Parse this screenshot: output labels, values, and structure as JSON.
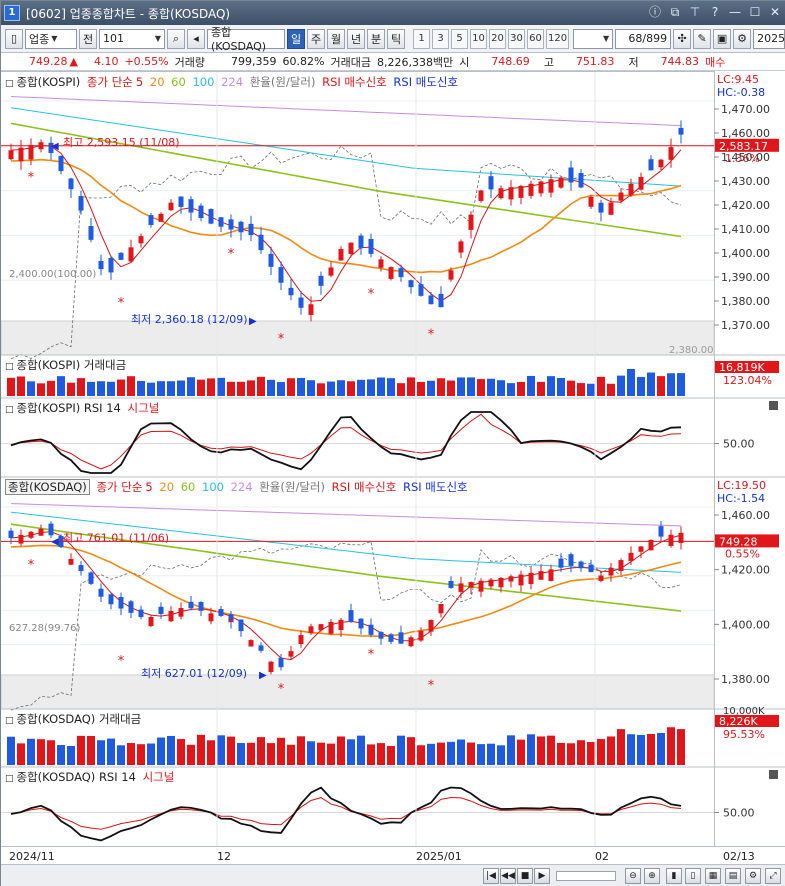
{
  "window": {
    "number": "1",
    "title": "[0602] 업종종합차트 - 종합(KOSDAQ)"
  },
  "toolbar": {
    "market": "업종",
    "prev_btn": "전",
    "code": "101",
    "name": "종합(KOSDAQ)",
    "periods": [
      "일",
      "주",
      "월",
      "년",
      "분",
      "틱"
    ],
    "active_period": "일",
    "minutes": [
      "1",
      "3",
      "5",
      "10",
      "20",
      "30",
      "60",
      "120"
    ],
    "count": "68/899",
    "date": "2025"
  },
  "quote": {
    "price": "749.28",
    "change": "4.10",
    "change_pct": "+0.55%",
    "volume_label": "거래량",
    "volume": "799,359",
    "volume_ratio": "60.82%",
    "amount_label": "거래대금",
    "amount": "8,226,338백만",
    "open_label": "시",
    "open": "748.69",
    "high_label": "고",
    "high": "751.83",
    "low_label": "저",
    "low": "744.83",
    "extra": "매수"
  },
  "kospi_panel": {
    "name": "종합(KOSPI)",
    "ma_label": "종가 단순",
    "ma": [
      "5",
      "20",
      "60",
      "100",
      "224"
    ],
    "fx_label": "환율(원/달러)",
    "buy_label": "RSI 매수신호",
    "sell_label": "RSI 매도신호",
    "lc": "LC:9.45",
    "hc": "HC:-0.38",
    "high_annot": "최고 2,593.15 (11/08)",
    "low_annot": "최저 2,360.18 (12/09)",
    "left_label": "2,400.00(100.00)",
    "last_price": "2,583.17",
    "last_pct": "1.36%",
    "right_ticks": [
      "1,470.00",
      "1,460.00",
      "1,450.00",
      "1,430.00",
      "1,420.00",
      "1,410.00",
      "1,400.00",
      "1,390.00",
      "1,380.00",
      "1,370.00"
    ],
    "bottom_cut": "2,380.00"
  },
  "kospi_volume": {
    "name": "종합(KOSPI) 거래대금",
    "last": "16,819K",
    "pct": "123.04%"
  },
  "kospi_rsi": {
    "name": "종합(KOSPI) RSI 14",
    "signal": "시그널",
    "tick": "50.00"
  },
  "kosdaq_panel": {
    "name": "종합(KOSDAQ)",
    "ma_label": "종가 단순",
    "ma": [
      "5",
      "20",
      "60",
      "100",
      "224"
    ],
    "fx_label": "환율(원/달러)",
    "buy_label": "RSI 매수신호",
    "sell_label": "RSI 매도신호",
    "lc": "LC:19.50",
    "hc": "HC:-1.54",
    "high_annot": "최고 761.01 (11/06)",
    "low_annot": "최저 627.01 (12/09)",
    "left_label": "627.28(99.76)",
    "last_price": "749.28",
    "last_pct": "0.55%",
    "right_ticks": [
      "1,460.00",
      "1,420.00",
      "1,400.00",
      "1,380.00"
    ]
  },
  "kosdaq_volume": {
    "name": "종합(KOSDAQ) 거래대금",
    "last": "8,226K",
    "pct": "95.53%",
    "top": "10,000K"
  },
  "kosdaq_rsi": {
    "name": "종합(KOSDAQ) RSI 14",
    "signal": "시그널",
    "tick": "50.00"
  },
  "x_axis": {
    "labels": [
      "2024/11",
      "12",
      "2025/01",
      "02",
      "02/13"
    ]
  },
  "colors": {
    "up": "#e0161b",
    "down": "#1e5be0",
    "ma5": "#d81414",
    "ma20": "#f08a12",
    "ma60": "#8cc21a",
    "ma100": "#26c1e3",
    "ma224": "#c58de0"
  }
}
